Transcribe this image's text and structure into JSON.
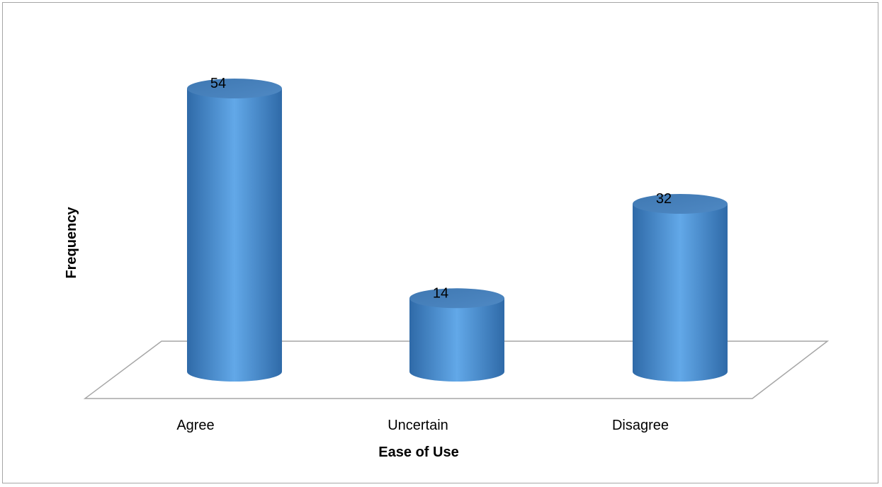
{
  "chart_data": {
    "type": "bar",
    "style": "3d-cylinder",
    "title": "",
    "xlabel": "Ease of Use",
    "ylabel": "Frequency",
    "categories": [
      "Agree",
      "Uncertain",
      "Disagree"
    ],
    "values": [
      54,
      14,
      32
    ],
    "data_labels": [
      "54",
      "14",
      "32"
    ],
    "ylim": [
      0,
      60
    ],
    "grid": false,
    "legend": "none",
    "colors": {
      "bar": "#5b9bd5",
      "bar_top": "#4a7fb5",
      "floor_line": "#a6a6a6"
    }
  }
}
